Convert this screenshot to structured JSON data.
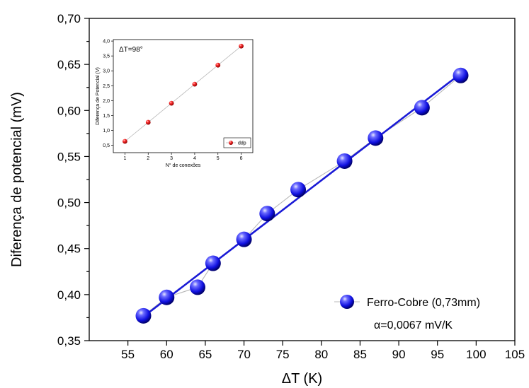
{
  "colors": {
    "main_marker": "#2b2bff",
    "main_fit": "#1a1ad6",
    "connector": "#b8b8b8",
    "inset_marker": "#e00000"
  },
  "chart_data": [
    {
      "type": "scatter",
      "xlabel": "ΔT (K)",
      "ylabel": "Diferença de potencial (mV)",
      "xlim": [
        50,
        105
      ],
      "ylim": [
        0.35,
        0.7
      ],
      "xticks": [
        55,
        60,
        65,
        70,
        75,
        80,
        85,
        90,
        95,
        100,
        105
      ],
      "xtick_labels": [
        "55",
        "60",
        "65",
        "70",
        "75",
        "80",
        "85",
        "90",
        "95",
        "100",
        "105"
      ],
      "yticks": [
        0.35,
        0.4,
        0.45,
        0.5,
        0.55,
        0.6,
        0.65,
        0.7
      ],
      "ytick_labels": [
        "0,35",
        "0,40",
        "0,45",
        "0,50",
        "0,55",
        "0,60",
        "0,65",
        "0,70"
      ],
      "series": [
        {
          "name": "Ferro-Cobre (0,73mm)",
          "x": [
            57,
            60,
            64,
            66,
            70,
            73,
            77,
            83,
            87,
            93,
            98
          ],
          "y": [
            0.377,
            0.397,
            0.408,
            0.434,
            0.46,
            0.488,
            0.514,
            0.545,
            0.57,
            0.603,
            0.638
          ]
        }
      ],
      "fit_line": {
        "x": [
          57,
          98
        ],
        "y": [
          0.376,
          0.64
        ]
      },
      "annotation": "α=0,0067 mV/K",
      "legend_position": "bottom-right",
      "grid": false
    },
    {
      "type": "scatter",
      "xlabel": "N° de conexões",
      "ylabel": "Diferença de Potencial (V)",
      "xlim": [
        0.5,
        6.5
      ],
      "ylim": [
        0.25,
        4.05
      ],
      "xticks": [
        1,
        2,
        3,
        4,
        5,
        6
      ],
      "xtick_labels": [
        "1",
        "2",
        "3",
        "4",
        "5",
        "6"
      ],
      "yticks": [
        0.5,
        1.0,
        1.5,
        2.0,
        2.5,
        3.0,
        3.5,
        4.0
      ],
      "ytick_labels": [
        "0,5",
        "1,0",
        "1,5",
        "2,0",
        "2,5",
        "3,0",
        "3,5",
        "4,0"
      ],
      "series": [
        {
          "name": "ddp",
          "x": [
            1,
            2,
            3,
            4,
            5,
            6
          ],
          "y": [
            0.63,
            1.27,
            1.91,
            2.55,
            3.19,
            3.83
          ]
        }
      ],
      "annotation": "ΔT=98°",
      "legend_position": "bottom-right",
      "grid": false
    }
  ]
}
